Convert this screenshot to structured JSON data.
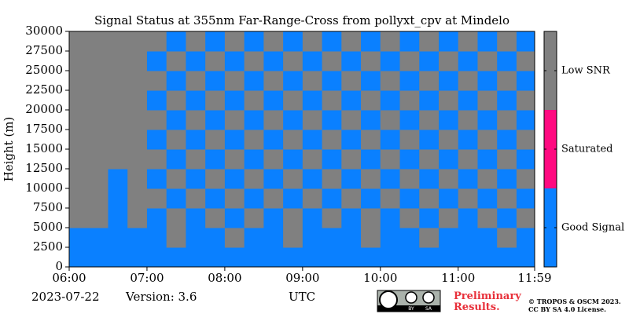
{
  "chart_data": {
    "type": "heatmap",
    "title": "Signal Status at 355nm Far-Range-Cross from pollyxt_cpv at Mindelo",
    "ylabel": "Height (m)",
    "xlabel": "UTC",
    "date": "2023-07-22",
    "version": "Version: 3.6",
    "notice": "Preliminary Results.",
    "copyright": [
      "© TROPOS & OSCM 2023.",
      "CC BY SA 4.0 License."
    ],
    "license_badge": [
      "BY",
      "SA"
    ],
    "xlim": [
      6,
      11.983
    ],
    "xticks": [
      {
        "value": 6,
        "label": "06:00"
      },
      {
        "value": 7,
        "label": "07:00"
      },
      {
        "value": 8,
        "label": "08:00"
      },
      {
        "value": 9,
        "label": "09:00"
      },
      {
        "value": 10,
        "label": "10:00"
      },
      {
        "value": 11,
        "label": "11:00"
      },
      {
        "value": 11.983,
        "label": "11:59"
      }
    ],
    "ylim": [
      0,
      30000
    ],
    "yticks": [
      0,
      2500,
      5000,
      7500,
      10000,
      12500,
      15000,
      17500,
      20000,
      22500,
      25000,
      27500,
      30000
    ],
    "xbins": [
      6,
      6.25,
      6.5,
      6.75,
      7,
      7.25,
      7.5,
      7.75,
      8,
      8.25,
      8.5,
      8.75,
      9,
      9.25,
      9.5,
      9.75,
      10,
      10.25,
      10.5,
      10.75,
      11,
      11.25,
      11.5,
      11.75,
      12
    ],
    "ybins": [
      0,
      2500,
      5000,
      7500,
      10000,
      12500,
      15000,
      17500,
      20000,
      22500,
      25000,
      27500,
      30000
    ],
    "classes": [
      "Good Signal",
      "Saturated",
      "Low SNR"
    ],
    "colors": [
      "#0a80ff",
      "#ff0a80",
      "#808080"
    ],
    "z": [
      [
        0,
        0,
        0,
        0,
        0,
        0,
        0,
        0,
        0,
        0,
        0,
        0,
        0,
        0,
        0,
        0,
        0,
        0,
        0,
        0,
        0,
        0,
        0,
        0
      ],
      [
        0,
        0,
        0,
        0,
        0,
        2,
        0,
        0,
        2,
        0,
        0,
        2,
        0,
        0,
        0,
        2,
        0,
        0,
        2,
        0,
        0,
        0,
        2,
        0
      ],
      [
        2,
        2,
        0,
        2,
        0,
        2,
        0,
        2,
        0,
        2,
        0,
        2,
        0,
        2,
        0,
        2,
        0,
        2,
        0,
        2,
        0,
        2,
        0,
        2
      ],
      [
        2,
        2,
        0,
        2,
        2,
        0,
        2,
        0,
        2,
        0,
        2,
        0,
        2,
        0,
        2,
        0,
        2,
        0,
        2,
        0,
        2,
        0,
        2,
        0
      ],
      [
        2,
        2,
        0,
        2,
        0,
        2,
        0,
        2,
        0,
        2,
        0,
        2,
        0,
        2,
        0,
        2,
        0,
        2,
        0,
        2,
        0,
        2,
        0,
        2
      ],
      [
        2,
        2,
        2,
        2,
        2,
        0,
        2,
        0,
        2,
        0,
        2,
        0,
        2,
        0,
        2,
        0,
        2,
        0,
        2,
        0,
        2,
        0,
        2,
        0
      ],
      [
        2,
        2,
        2,
        2,
        0,
        2,
        0,
        2,
        0,
        2,
        0,
        2,
        0,
        2,
        0,
        2,
        0,
        2,
        0,
        2,
        0,
        2,
        0,
        2
      ],
      [
        2,
        2,
        2,
        2,
        2,
        0,
        2,
        0,
        2,
        0,
        2,
        0,
        2,
        0,
        2,
        0,
        2,
        0,
        2,
        0,
        2,
        0,
        2,
        0
      ],
      [
        2,
        2,
        2,
        2,
        0,
        2,
        0,
        2,
        0,
        2,
        0,
        2,
        0,
        2,
        0,
        2,
        0,
        2,
        0,
        2,
        0,
        2,
        0,
        2
      ],
      [
        2,
        2,
        2,
        2,
        2,
        0,
        2,
        0,
        2,
        0,
        2,
        0,
        2,
        0,
        2,
        0,
        2,
        0,
        2,
        0,
        2,
        0,
        2,
        0
      ],
      [
        2,
        2,
        2,
        2,
        0,
        2,
        0,
        2,
        0,
        2,
        0,
        2,
        0,
        2,
        0,
        2,
        0,
        2,
        0,
        2,
        0,
        2,
        0,
        2
      ],
      [
        2,
        2,
        2,
        2,
        2,
        0,
        2,
        0,
        2,
        0,
        2,
        0,
        2,
        0,
        2,
        0,
        2,
        0,
        2,
        0,
        2,
        0,
        2,
        0
      ]
    ]
  }
}
